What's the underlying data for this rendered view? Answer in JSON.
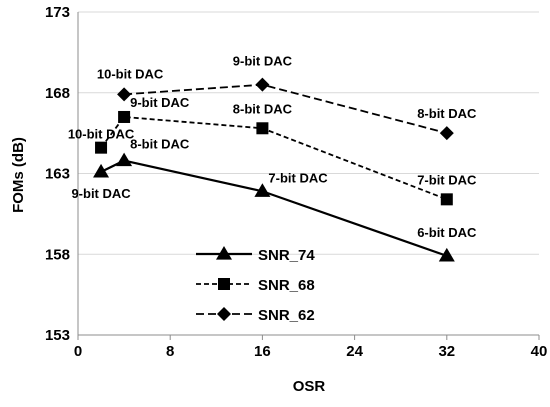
{
  "chart_data": {
    "type": "line",
    "title": "",
    "xlabel": "OSR",
    "ylabel": "FOMs (dB)",
    "xlim": [
      0,
      40
    ],
    "ylim": [
      153,
      173
    ],
    "xticks": [
      0,
      8,
      16,
      24,
      32,
      40
    ],
    "yticks": [
      153,
      158,
      163,
      168,
      173
    ],
    "grid": "horizontal",
    "legend_position": "lower-left",
    "series": [
      {
        "name": "SNR_74",
        "line_style": "solid",
        "marker": "triangle",
        "color": "#000000",
        "points": [
          {
            "x": 2,
            "y": 163.1,
            "label": "9-bit DAC"
          },
          {
            "x": 4,
            "y": 163.8,
            "label": "8-bit DAC"
          },
          {
            "x": 16,
            "y": 161.9,
            "label": "7-bit DAC"
          },
          {
            "x": 32,
            "y": 157.9,
            "label": "6-bit DAC"
          }
        ]
      },
      {
        "name": "SNR_68",
        "line_style": "short-dash",
        "marker": "square",
        "color": "#000000",
        "points": [
          {
            "x": 2,
            "y": 164.6,
            "label": "10-bit DAC"
          },
          {
            "x": 4,
            "y": 166.5,
            "label": "9-bit DAC"
          },
          {
            "x": 16,
            "y": 165.8,
            "label": "8-bit DAC"
          },
          {
            "x": 32,
            "y": 161.4,
            "label": "7-bit DAC"
          }
        ]
      },
      {
        "name": "SNR_62",
        "line_style": "long-dash",
        "marker": "diamond",
        "color": "#000000",
        "points": [
          {
            "x": 4,
            "y": 167.9,
            "label": "10-bit DAC"
          },
          {
            "x": 16,
            "y": 168.5,
            "label": "9-bit DAC"
          },
          {
            "x": 32,
            "y": 165.5,
            "label": "8-bit DAC"
          }
        ]
      }
    ]
  }
}
